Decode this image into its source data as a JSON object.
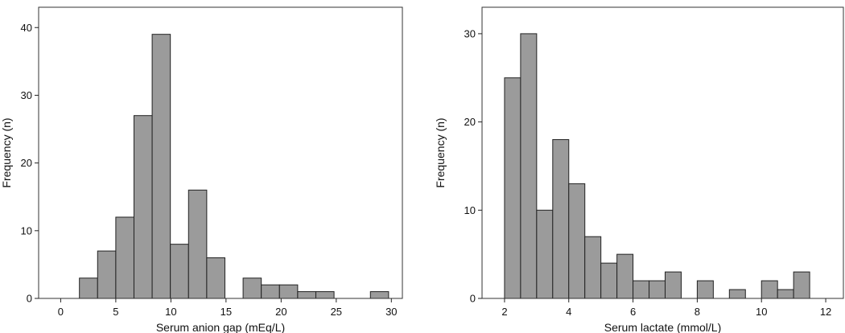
{
  "chart_data": [
    {
      "type": "bar",
      "histogram": true,
      "xlabel": "Serum anion gap (mEq/L)",
      "ylabel": "Frequency (n)",
      "xlim": [
        -2,
        31
      ],
      "ylim": [
        0,
        43
      ],
      "xticks": [
        0,
        5,
        10,
        15,
        20,
        25,
        30
      ],
      "yticks": [
        0,
        10,
        20,
        30,
        40
      ],
      "bins": [
        {
          "x0": 1.7,
          "x1": 3.35,
          "value": 3
        },
        {
          "x0": 3.35,
          "x1": 5.0,
          "value": 7
        },
        {
          "x0": 5.0,
          "x1": 6.65,
          "value": 12
        },
        {
          "x0": 6.65,
          "x1": 8.3,
          "value": 27
        },
        {
          "x0": 8.3,
          "x1": 9.95,
          "value": 39
        },
        {
          "x0": 9.95,
          "x1": 11.6,
          "value": 8
        },
        {
          "x0": 11.6,
          "x1": 13.25,
          "value": 16
        },
        {
          "x0": 13.25,
          "x1": 14.9,
          "value": 6
        },
        {
          "x0": 16.55,
          "x1": 18.2,
          "value": 3
        },
        {
          "x0": 18.2,
          "x1": 19.85,
          "value": 2
        },
        {
          "x0": 19.85,
          "x1": 21.5,
          "value": 2
        },
        {
          "x0": 21.5,
          "x1": 23.15,
          "value": 1
        },
        {
          "x0": 23.15,
          "x1": 24.8,
          "value": 1
        },
        {
          "x0": 28.1,
          "x1": 29.75,
          "value": 1
        }
      ]
    },
    {
      "type": "bar",
      "histogram": true,
      "xlabel": "Serum lactate (mmol/L)",
      "ylabel": "Frequency (n)",
      "xlim": [
        1.3,
        12.55
      ],
      "ylim": [
        0,
        33
      ],
      "xticks": [
        2,
        4,
        6,
        8,
        10,
        12
      ],
      "yticks": [
        0,
        10,
        20,
        30
      ],
      "bins": [
        {
          "x0": 2.0,
          "x1": 2.5,
          "value": 25
        },
        {
          "x0": 2.5,
          "x1": 3.0,
          "value": 30
        },
        {
          "x0": 3.0,
          "x1": 3.5,
          "value": 10
        },
        {
          "x0": 3.5,
          "x1": 4.0,
          "value": 18
        },
        {
          "x0": 4.0,
          "x1": 4.5,
          "value": 13
        },
        {
          "x0": 4.5,
          "x1": 5.0,
          "value": 7
        },
        {
          "x0": 5.0,
          "x1": 5.5,
          "value": 4
        },
        {
          "x0": 5.5,
          "x1": 6.0,
          "value": 5
        },
        {
          "x0": 6.0,
          "x1": 6.5,
          "value": 2
        },
        {
          "x0": 6.5,
          "x1": 7.0,
          "value": 2
        },
        {
          "x0": 7.0,
          "x1": 7.5,
          "value": 3
        },
        {
          "x0": 8.0,
          "x1": 8.5,
          "value": 2
        },
        {
          "x0": 9.0,
          "x1": 9.5,
          "value": 1
        },
        {
          "x0": 10.0,
          "x1": 10.5,
          "value": 2
        },
        {
          "x0": 10.5,
          "x1": 11.0,
          "value": 1
        },
        {
          "x0": 11.0,
          "x1": 11.5,
          "value": 3
        }
      ]
    }
  ],
  "colors": {
    "bar_fill": "#9b9b9b",
    "bar_stroke": "#222222",
    "frame": "#333333",
    "background": "#ffffff"
  }
}
